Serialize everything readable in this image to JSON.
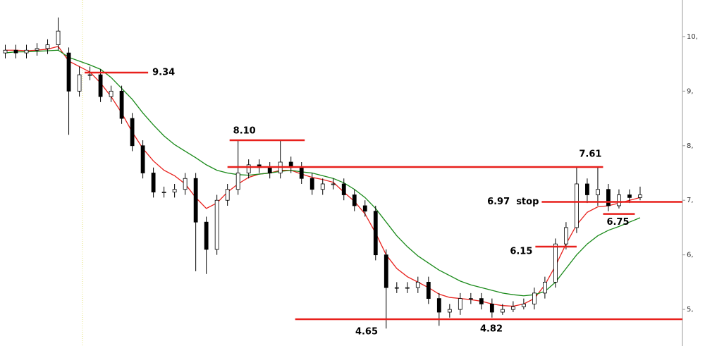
{
  "chart_data": {
    "type": "candlestick",
    "x": [
      0,
      1,
      2,
      3,
      4,
      5,
      6,
      7,
      8,
      9,
      10,
      11,
      12,
      13,
      14,
      15,
      16,
      17,
      18,
      19,
      20,
      21,
      22,
      23,
      24,
      25,
      26,
      27,
      28,
      29,
      30,
      31,
      32,
      33,
      34,
      35,
      36,
      37,
      38,
      39,
      40,
      41,
      42,
      43,
      44,
      45,
      46,
      47,
      48,
      49,
      50,
      51,
      52,
      53,
      54,
      55,
      56,
      57,
      58,
      59,
      60
    ],
    "open": [
      9.7,
      9.75,
      9.7,
      9.75,
      9.78,
      9.85,
      9.7,
      9.0,
      9.3,
      9.3,
      8.9,
      9.0,
      8.5,
      8.0,
      7.5,
      7.15,
      7.15,
      7.2,
      7.4,
      6.6,
      6.1,
      7.0,
      7.2,
      7.5,
      7.65,
      7.6,
      7.5,
      7.7,
      7.6,
      7.4,
      7.2,
      7.3,
      7.3,
      7.1,
      6.9,
      6.8,
      6.0,
      5.4,
      5.4,
      5.4,
      5.5,
      5.2,
      4.95,
      5.0,
      5.2,
      5.2,
      5.1,
      4.95,
      5.0,
      5.05,
      5.1,
      5.3,
      5.5,
      6.2,
      6.5,
      7.3,
      7.1,
      7.2,
      6.9,
      7.1,
      7.05
    ],
    "high": [
      9.85,
      9.85,
      9.85,
      9.88,
      9.95,
      10.35,
      9.8,
      9.45,
      9.45,
      9.4,
      9.1,
      9.1,
      8.6,
      8.1,
      7.6,
      7.25,
      7.3,
      7.5,
      7.5,
      6.7,
      7.1,
      7.3,
      8.1,
      7.75,
      7.75,
      7.7,
      8.1,
      7.8,
      7.7,
      7.5,
      7.4,
      7.4,
      7.4,
      7.2,
      7.0,
      6.9,
      6.1,
      5.5,
      5.5,
      5.6,
      5.6,
      5.3,
      5.1,
      5.3,
      5.3,
      5.3,
      5.2,
      5.1,
      5.15,
      5.2,
      5.4,
      5.6,
      6.3,
      6.6,
      7.61,
      7.4,
      7.61,
      7.3,
      7.2,
      7.2,
      7.25
    ],
    "low": [
      9.6,
      9.6,
      9.6,
      9.65,
      9.68,
      9.75,
      8.2,
      8.9,
      9.2,
      8.8,
      8.8,
      8.4,
      7.9,
      7.4,
      7.05,
      7.05,
      7.05,
      7.1,
      5.7,
      5.65,
      6.0,
      6.9,
      7.1,
      7.4,
      7.5,
      7.4,
      7.4,
      7.5,
      7.3,
      7.1,
      7.1,
      7.2,
      7.0,
      6.8,
      6.7,
      5.9,
      4.65,
      5.3,
      5.3,
      5.3,
      5.1,
      4.7,
      4.85,
      4.9,
      5.1,
      5.0,
      4.85,
      4.9,
      4.95,
      5.0,
      5.0,
      5.2,
      5.4,
      6.1,
      6.4,
      6.95,
      6.9,
      6.8,
      6.85,
      6.95,
      7.0
    ],
    "close": [
      9.75,
      9.7,
      9.75,
      9.78,
      9.85,
      10.1,
      9.0,
      9.3,
      9.3,
      8.9,
      9.0,
      8.5,
      8.0,
      7.5,
      7.15,
      7.15,
      7.2,
      7.4,
      6.6,
      6.1,
      7.0,
      7.2,
      7.5,
      7.65,
      7.6,
      7.5,
      7.7,
      7.6,
      7.4,
      7.2,
      7.3,
      7.3,
      7.1,
      6.9,
      6.8,
      6.0,
      5.4,
      5.4,
      5.4,
      5.5,
      5.2,
      4.95,
      5.0,
      5.2,
      5.2,
      5.1,
      4.95,
      5.0,
      5.05,
      5.1,
      5.3,
      5.5,
      6.2,
      6.5,
      7.3,
      7.1,
      7.2,
      6.9,
      7.1,
      7.05,
      7.1
    ],
    "ma_lines": [
      {
        "color": "#e8201c",
        "values": [
          9.75,
          9.75,
          9.74,
          9.75,
          9.77,
          9.82,
          9.55,
          9.45,
          9.35,
          9.15,
          8.9,
          8.6,
          8.25,
          7.95,
          7.72,
          7.55,
          7.45,
          7.3,
          7.05,
          6.85,
          6.95,
          7.15,
          7.3,
          7.42,
          7.48,
          7.5,
          7.55,
          7.55,
          7.48,
          7.42,
          7.38,
          7.33,
          7.15,
          6.98,
          6.75,
          6.4,
          6.0,
          5.75,
          5.6,
          5.5,
          5.4,
          5.28,
          5.22,
          5.2,
          5.18,
          5.15,
          5.1,
          5.07,
          5.06,
          5.1,
          5.2,
          5.45,
          5.8,
          6.2,
          6.55,
          6.78,
          6.88,
          6.9,
          6.95,
          7.0,
          7.05
        ]
      },
      {
        "color": "#1a8a1a",
        "values": [
          9.7,
          9.72,
          9.72,
          9.73,
          9.74,
          9.75,
          9.62,
          9.55,
          9.48,
          9.4,
          9.25,
          9.05,
          8.85,
          8.6,
          8.38,
          8.18,
          8.02,
          7.9,
          7.78,
          7.65,
          7.55,
          7.5,
          7.47,
          7.46,
          7.48,
          7.5,
          7.53,
          7.55,
          7.52,
          7.5,
          7.45,
          7.4,
          7.32,
          7.2,
          7.05,
          6.85,
          6.6,
          6.35,
          6.15,
          5.98,
          5.85,
          5.72,
          5.62,
          5.52,
          5.45,
          5.4,
          5.35,
          5.3,
          5.27,
          5.25,
          5.27,
          5.33,
          5.5,
          5.75,
          6.0,
          6.2,
          6.35,
          6.45,
          6.52,
          6.6,
          6.68
        ]
      }
    ],
    "annotations": [
      {
        "label": "9.34",
        "value": 9.34,
        "x": [
          7.5,
          13.5
        ]
      },
      {
        "label": "8.10",
        "value": 8.1,
        "x": [
          21.2,
          28.3
        ]
      },
      {
        "label": "7.61",
        "value": 7.61,
        "x": [
          21,
          56.5
        ]
      },
      {
        "label": "6.97  stop",
        "value": 6.97,
        "x": [
          50.7,
          64
        ]
      },
      {
        "label": "6.75",
        "value": 6.75,
        "x": [
          56.5,
          59.5
        ]
      },
      {
        "label": "6.15",
        "value": 6.15,
        "x": [
          50.1,
          54
        ]
      },
      {
        "label": "4.82",
        "value": 4.82,
        "x": [
          27.4,
          64
        ]
      },
      {
        "label": "4.65",
        "value": 4.65
      }
    ],
    "xlim": [
      -0.5,
      64
    ],
    "ylim": [
      4.33,
      10.67
    ],
    "yticks": [
      {
        "value": 5,
        "label": "5,"
      },
      {
        "value": 6,
        "label": "6,"
      },
      {
        "value": 7,
        "label": "7,"
      },
      {
        "value": 8,
        "label": "8,"
      },
      {
        "value": 9,
        "label": "9,"
      },
      {
        "value": 10,
        "label": "10,"
      }
    ]
  }
}
